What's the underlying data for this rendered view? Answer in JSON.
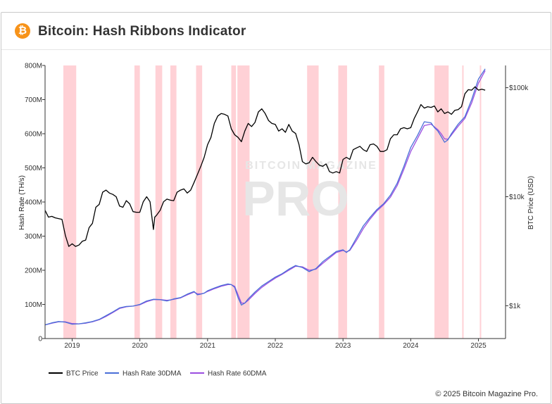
{
  "header": {
    "title": "Bitcoin: Hash Ribbons Indicator",
    "logo_glyph": "₿",
    "logo_color": "#f7931a"
  },
  "footer": {
    "copyright": "© 2025 Bitcoin Magazine Pro."
  },
  "watermark": {
    "line1": "BITCOIN MAGAZINE",
    "line2": "PRO"
  },
  "colors": {
    "btc": "#000000",
    "hr30": "#4a6fd8",
    "hr60": "#9b4ee0",
    "band": "#ffc9cf",
    "axis": "#333333",
    "watermark": "#e6e6e6"
  },
  "chart_data": {
    "type": "line",
    "title": "Bitcoin: Hash Ribbons Indicator",
    "ylabel_left": "Hash Rate (TH/s)",
    "ylabel_right": "BTC Price (USD)",
    "x_range": [
      2018.6,
      2025.4
    ],
    "ylim_left": [
      0,
      800
    ],
    "left_ticks": [
      {
        "v": 0,
        "label": "0"
      },
      {
        "v": 100,
        "label": "100M"
      },
      {
        "v": 200,
        "label": "200M"
      },
      {
        "v": 300,
        "label": "300M"
      },
      {
        "v": 400,
        "label": "400M"
      },
      {
        "v": 500,
        "label": "500M"
      },
      {
        "v": 600,
        "label": "600M"
      },
      {
        "v": 700,
        "label": "700M"
      },
      {
        "v": 800,
        "label": "800M"
      }
    ],
    "right_scale": "log",
    "ylim_right": [
      500,
      160000
    ],
    "right_ticks": [
      {
        "v": 1000,
        "label": "$1k"
      },
      {
        "v": 10000,
        "label": "$10k"
      },
      {
        "v": 100000,
        "label": "$100k"
      }
    ],
    "x_ticks": [
      {
        "v": 2019,
        "label": "2019"
      },
      {
        "v": 2020,
        "label": "2020"
      },
      {
        "v": 2021,
        "label": "2021"
      },
      {
        "v": 2022,
        "label": "2022"
      },
      {
        "v": 2023,
        "label": "2023"
      },
      {
        "v": 2024,
        "label": "2024"
      },
      {
        "v": 2025,
        "label": "2025"
      }
    ],
    "capitulation_bands": [
      [
        2018.87,
        2019.06
      ],
      [
        2019.92,
        2020.0
      ],
      [
        2020.23,
        2020.33
      ],
      [
        2020.45,
        2020.54
      ],
      [
        2020.83,
        2020.92
      ],
      [
        2021.35,
        2021.42
      ],
      [
        2021.44,
        2021.62
      ],
      [
        2022.47,
        2022.64
      ],
      [
        2022.93,
        2023.06
      ],
      [
        2023.53,
        2023.61
      ],
      [
        2024.35,
        2024.56
      ],
      [
        2024.76,
        2024.78
      ],
      [
        2025.02,
        2025.04
      ]
    ],
    "series": [
      {
        "name": "BTC Price",
        "axis": "right",
        "color": "#000000",
        "x": [
          2018.6,
          2018.65,
          2018.7,
          2018.75,
          2018.8,
          2018.85,
          2018.9,
          2018.95,
          2019.0,
          2019.05,
          2019.1,
          2019.15,
          2019.2,
          2019.25,
          2019.3,
          2019.35,
          2019.4,
          2019.45,
          2019.5,
          2019.55,
          2019.6,
          2019.65,
          2019.7,
          2019.75,
          2019.8,
          2019.85,
          2019.9,
          2019.95,
          2020.0,
          2020.05,
          2020.1,
          2020.15,
          2020.2,
          2020.22,
          2020.25,
          2020.3,
          2020.35,
          2020.4,
          2020.45,
          2020.5,
          2020.55,
          2020.6,
          2020.65,
          2020.7,
          2020.75,
          2020.8,
          2020.85,
          2020.9,
          2020.95,
          2021.0,
          2021.05,
          2021.1,
          2021.15,
          2021.2,
          2021.25,
          2021.3,
          2021.35,
          2021.4,
          2021.45,
          2021.5,
          2021.55,
          2021.6,
          2021.65,
          2021.7,
          2021.75,
          2021.8,
          2021.85,
          2021.9,
          2021.95,
          2022.0,
          2022.05,
          2022.1,
          2022.15,
          2022.2,
          2022.25,
          2022.3,
          2022.35,
          2022.4,
          2022.45,
          2022.5,
          2022.55,
          2022.6,
          2022.65,
          2022.7,
          2022.75,
          2022.8,
          2022.85,
          2022.9,
          2022.95,
          2023.0,
          2023.05,
          2023.1,
          2023.15,
          2023.2,
          2023.25,
          2023.3,
          2023.35,
          2023.4,
          2023.45,
          2023.5,
          2023.55,
          2023.6,
          2023.65,
          2023.7,
          2023.75,
          2023.8,
          2023.85,
          2023.9,
          2023.95,
          2024.0,
          2024.05,
          2024.1,
          2024.15,
          2024.2,
          2024.25,
          2024.3,
          2024.35,
          2024.4,
          2024.45,
          2024.5,
          2024.55,
          2024.6,
          2024.65,
          2024.7,
          2024.75,
          2024.8,
          2024.85,
          2024.9,
          2024.95,
          2025.0,
          2025.05,
          2025.1
        ],
        "values": [
          7500,
          6500,
          6600,
          6400,
          6300,
          6200,
          4400,
          3500,
          3700,
          3500,
          3600,
          3900,
          4000,
          5200,
          5700,
          8000,
          8500,
          11000,
          11500,
          10800,
          10500,
          10000,
          8200,
          8000,
          9200,
          8600,
          7300,
          7200,
          7200,
          9000,
          10000,
          9000,
          5000,
          6500,
          6800,
          7500,
          9000,
          9500,
          9300,
          9200,
          11000,
          11500,
          11800,
          10800,
          11500,
          13500,
          16000,
          19000,
          23000,
          30000,
          35000,
          47000,
          55000,
          58000,
          57000,
          55000,
          42000,
          37000,
          35000,
          32000,
          40000,
          47000,
          44000,
          48000,
          60000,
          64000,
          58000,
          50000,
          47000,
          46000,
          40000,
          42000,
          39000,
          46000,
          40000,
          38000,
          30000,
          21000,
          20000,
          20500,
          23000,
          21000,
          19500,
          19000,
          20000,
          17000,
          16500,
          17000,
          16500,
          22000,
          23000,
          22000,
          27000,
          28000,
          29000,
          27000,
          26000,
          30000,
          30500,
          29000,
          26000,
          26000,
          27000,
          34000,
          37000,
          37000,
          42000,
          43000,
          42000,
          43000,
          52000,
          60000,
          70000,
          65000,
          67000,
          66000,
          68000,
          60000,
          64000,
          58000,
          60000,
          57000,
          62000,
          63000,
          67000,
          88000,
          96000,
          95000,
          102000,
          95000,
          97000,
          95000
        ]
      },
      {
        "name": "Hash Rate 30DMA",
        "axis": "left",
        "color": "#4a6fd8",
        "x": [
          2018.6,
          2018.7,
          2018.8,
          2018.9,
          2019.0,
          2019.1,
          2019.2,
          2019.3,
          2019.4,
          2019.5,
          2019.6,
          2019.7,
          2019.8,
          2019.9,
          2020.0,
          2020.1,
          2020.2,
          2020.3,
          2020.35,
          2020.4,
          2020.45,
          2020.5,
          2020.6,
          2020.7,
          2020.8,
          2020.85,
          2020.9,
          2020.95,
          2021.0,
          2021.1,
          2021.2,
          2021.3,
          2021.35,
          2021.4,
          2021.45,
          2021.5,
          2021.55,
          2021.6,
          2021.7,
          2021.8,
          2021.9,
          2022.0,
          2022.1,
          2022.2,
          2022.3,
          2022.4,
          2022.5,
          2022.6,
          2022.7,
          2022.8,
          2022.9,
          2023.0,
          2023.05,
          2023.1,
          2023.2,
          2023.3,
          2023.4,
          2023.5,
          2023.6,
          2023.7,
          2023.8,
          2023.9,
          2024.0,
          2024.1,
          2024.2,
          2024.3,
          2024.35,
          2024.4,
          2024.45,
          2024.5,
          2024.55,
          2024.6,
          2024.7,
          2024.8,
          2024.9,
          2025.0,
          2025.1
        ],
        "values": [
          40,
          46,
          50,
          48,
          42,
          43,
          46,
          50,
          56,
          67,
          78,
          90,
          94,
          95,
          100,
          110,
          115,
          114,
          112,
          110,
          113,
          116,
          120,
          130,
          138,
          128,
          130,
          133,
          140,
          148,
          155,
          160,
          158,
          150,
          120,
          98,
          104,
          116,
          136,
          154,
          167,
          180,
          190,
          203,
          214,
          208,
          196,
          205,
          225,
          240,
          255,
          260,
          252,
          260,
          295,
          330,
          355,
          378,
          395,
          420,
          455,
          505,
          560,
          595,
          635,
          632,
          618,
          608,
          592,
          575,
          582,
          600,
          628,
          650,
          700,
          760,
          790
        ]
      },
      {
        "name": "Hash Rate 60DMA",
        "axis": "left",
        "color": "#9b4ee0",
        "x": [
          2018.6,
          2018.7,
          2018.8,
          2018.9,
          2019.0,
          2019.1,
          2019.2,
          2019.3,
          2019.4,
          2019.5,
          2019.6,
          2019.7,
          2019.8,
          2019.9,
          2020.0,
          2020.1,
          2020.2,
          2020.3,
          2020.35,
          2020.4,
          2020.45,
          2020.5,
          2020.6,
          2020.7,
          2020.8,
          2020.85,
          2020.9,
          2020.95,
          2021.0,
          2021.1,
          2021.2,
          2021.3,
          2021.35,
          2021.4,
          2021.45,
          2021.5,
          2021.55,
          2021.6,
          2021.7,
          2021.8,
          2021.9,
          2022.0,
          2022.1,
          2022.2,
          2022.3,
          2022.4,
          2022.5,
          2022.6,
          2022.7,
          2022.8,
          2022.9,
          2023.0,
          2023.05,
          2023.1,
          2023.2,
          2023.3,
          2023.4,
          2023.5,
          2023.6,
          2023.7,
          2023.8,
          2023.9,
          2024.0,
          2024.1,
          2024.2,
          2024.3,
          2024.35,
          2024.4,
          2024.45,
          2024.5,
          2024.55,
          2024.6,
          2024.7,
          2024.8,
          2024.9,
          2025.0,
          2025.1
        ],
        "values": [
          40,
          45,
          49,
          49,
          44,
          43,
          45,
          49,
          55,
          65,
          76,
          88,
          93,
          95,
          99,
          108,
          114,
          114,
          113,
          112,
          113,
          115,
          119,
          128,
          136,
          131,
          131,
          133,
          138,
          146,
          153,
          158,
          158,
          153,
          128,
          104,
          104,
          112,
          132,
          150,
          164,
          177,
          188,
          200,
          212,
          210,
          200,
          203,
          220,
          236,
          252,
          258,
          254,
          258,
          288,
          322,
          350,
          374,
          392,
          414,
          448,
          496,
          548,
          586,
          624,
          628,
          620,
          612,
          600,
          585,
          584,
          596,
          622,
          645,
          690,
          748,
          785
        ]
      }
    ],
    "legend": [
      {
        "label": "BTC Price",
        "color": "#000000"
      },
      {
        "label": "Hash Rate 30DMA",
        "color": "#4a6fd8"
      },
      {
        "label": "Hash Rate 60DMA",
        "color": "#9b4ee0"
      }
    ]
  }
}
